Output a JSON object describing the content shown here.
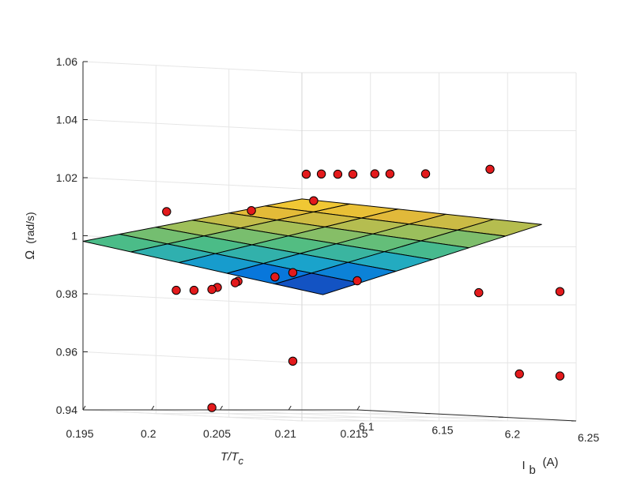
{
  "chart_data": {
    "type": "surface-scatter-3d",
    "x_axis": {
      "label_main": "T/T",
      "label_sub": "c",
      "range": [
        0.195,
        0.215
      ],
      "ticks": [
        {
          "v": 0.195,
          "t": "0.195"
        },
        {
          "v": 0.2,
          "t": "0.2"
        },
        {
          "v": 0.205,
          "t": "0.205"
        },
        {
          "v": 0.21,
          "t": "0.21"
        },
        {
          "v": 0.215,
          "t": "0.215"
        }
      ]
    },
    "y_axis": {
      "label_main": "I",
      "label_sub": "b",
      "label_unit": "(A)",
      "range": [
        6.1,
        6.25
      ],
      "ticks": [
        {
          "v": 6.1,
          "t": "6.1"
        },
        {
          "v": 6.15,
          "t": "6.15"
        },
        {
          "v": 6.2,
          "t": "6.2"
        },
        {
          "v": 6.25,
          "t": "6.25"
        }
      ]
    },
    "z_axis": {
      "label_main": "Ω",
      "label_unit": "(rad/s)",
      "range": [
        0.94,
        1.06
      ],
      "ticks": [
        {
          "v": 0.94,
          "t": "0.94"
        },
        {
          "v": 0.96,
          "t": "0.96"
        },
        {
          "v": 0.98,
          "t": "0.98"
        },
        {
          "v": 1.0,
          "t": "1"
        },
        {
          "v": 1.02,
          "t": "1.02"
        },
        {
          "v": 1.04,
          "t": "1.04"
        },
        {
          "v": 1.06,
          "t": "1.06"
        }
      ]
    },
    "grid": true,
    "surface": {
      "x_range": [
        0.195,
        0.2125
      ],
      "y_range": [
        6.1,
        6.25
      ],
      "nx": 5,
      "ny": 6,
      "z_corner_x0_y0": 0.9981,
      "z_corner_x1_y0": 0.9797,
      "z_corner_x0_y1": 1.0165,
      "z_corner_x1_y1": 1.0077,
      "colormap": [
        "#352a87",
        "#0268e1",
        "#1ca8c9",
        "#4dbd85",
        "#9dbf5b",
        "#e3b939",
        "#f9d130"
      ]
    },
    "points": [
      {
        "x": 0.2096,
        "y": 6.2417,
        "z": 1.0265
      },
      {
        "x": 0.2055,
        "y": 6.2361,
        "z": 1.0248
      },
      {
        "x": 0.2029,
        "y": 6.2361,
        "z": 1.0248
      },
      {
        "x": 0.2018,
        "y": 6.2361,
        "z": 1.0248
      },
      {
        "x": 0.1996,
        "y": 6.2417,
        "z": 1.0248
      },
      {
        "x": 0.1985,
        "y": 6.2417,
        "z": 1.0248
      },
      {
        "x": 0.1976,
        "y": 6.2389,
        "z": 1.0248
      },
      {
        "x": 0.1962,
        "y": 6.2417,
        "z": 1.0248
      },
      {
        "x": 0.2003,
        "y": 6.2083,
        "z": 1.0148
      },
      {
        "x": 0.1996,
        "y": 6.1722,
        "z": 1.0105
      },
      {
        "x": 0.2011,
        "y": 6.1,
        "z": 1.0083
      },
      {
        "x": 0.2103,
        "y": 6.1,
        "z": 0.9873
      },
      {
        "x": 0.209,
        "y": 6.1,
        "z": 0.9858
      },
      {
        "x": 0.2063,
        "y": 6.1,
        "z": 0.9843
      },
      {
        "x": 0.2061,
        "y": 6.1,
        "z": 0.9838
      },
      {
        "x": 0.2048,
        "y": 6.1,
        "z": 0.9822
      },
      {
        "x": 0.2044,
        "y": 6.1,
        "z": 0.9815
      },
      {
        "x": 0.2031,
        "y": 6.1,
        "z": 0.9812
      },
      {
        "x": 0.2018,
        "y": 6.1,
        "z": 0.9812
      },
      {
        "x": 0.215,
        "y": 6.1,
        "z": 0.9845
      },
      {
        "x": 0.215,
        "y": 6.1833,
        "z": 0.9825
      },
      {
        "x": 0.215,
        "y": 6.2389,
        "z": 0.9843
      },
      {
        "x": 0.2103,
        "y": 6.1,
        "z": 0.9568
      },
      {
        "x": 0.215,
        "y": 6.2389,
        "z": 0.9552
      },
      {
        "x": 0.215,
        "y": 6.2111,
        "z": 0.9552
      },
      {
        "x": 0.2044,
        "y": 6.1,
        "z": 0.9408
      }
    ],
    "point_color": "#e31a1c"
  }
}
